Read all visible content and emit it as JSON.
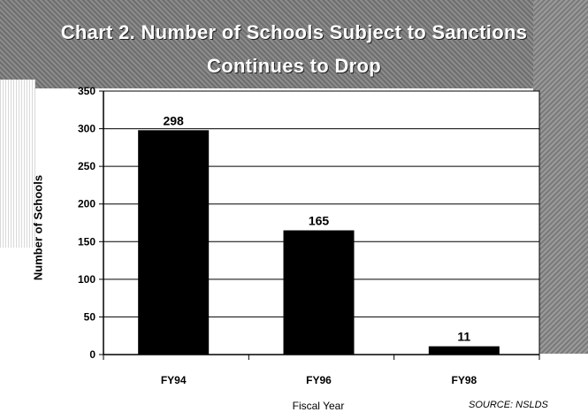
{
  "chart_data": {
    "type": "bar",
    "title": "Chart 2. Number of Schools Subject to Sanctions Continues to Drop",
    "title_lines": [
      "Chart 2. Number of Schools Subject to Sanctions",
      "Continues to Drop"
    ],
    "xlabel": "Fiscal Year",
    "ylabel": "Number of Schools",
    "categories": [
      "FY94",
      "FY96",
      "FY98"
    ],
    "values": [
      298,
      165,
      11
    ],
    "ylim": [
      0,
      350
    ],
    "yticks": [
      "0",
      "50",
      "100",
      "150",
      "200",
      "250",
      "300",
      "350"
    ],
    "grid": true,
    "legend": "none",
    "source": "SOURCE: NSLDS",
    "colors": {
      "bar": "#000000",
      "plot_background": "#ffffff",
      "gridline": "#000000"
    }
  }
}
